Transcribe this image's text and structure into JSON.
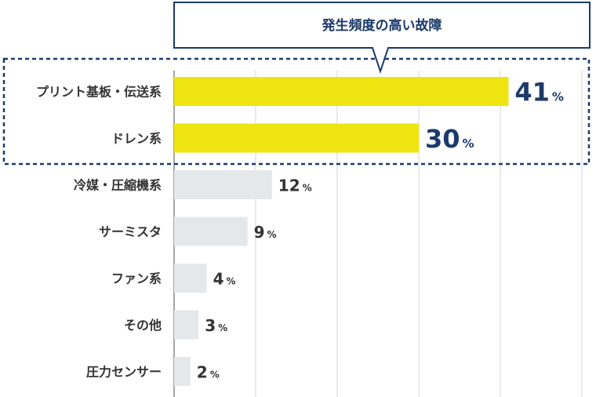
{
  "chart_data": {
    "type": "bar",
    "orientation": "horizontal",
    "title": "",
    "xlabel": "",
    "ylabel": "",
    "xlim": [
      0,
      50
    ],
    "grid": true,
    "categories": [
      "プリント基板・伝送系",
      "ドレン系",
      "冷媒・圧縮機系",
      "サーミスタ",
      "ファン系",
      "その他",
      "圧力センサー"
    ],
    "values": [
      41,
      30,
      12,
      9,
      4,
      3,
      2
    ],
    "value_labels": [
      "41",
      "30",
      "12",
      "9",
      "4",
      "3",
      "2"
    ],
    "unit": "%",
    "highlighted": [
      0,
      1
    ],
    "annotation": "発生頻度の高い故障"
  },
  "colors": {
    "highlight_bar": "#eee510",
    "normal_bar": "#e5e8ea",
    "highlight_text": "#1b3a6b",
    "normal_text": "#333333",
    "grid": "#d5d5d5",
    "axis": "#888888",
    "callout_border": "#1b3a6b",
    "dashed_box": "#1b3a6b"
  }
}
